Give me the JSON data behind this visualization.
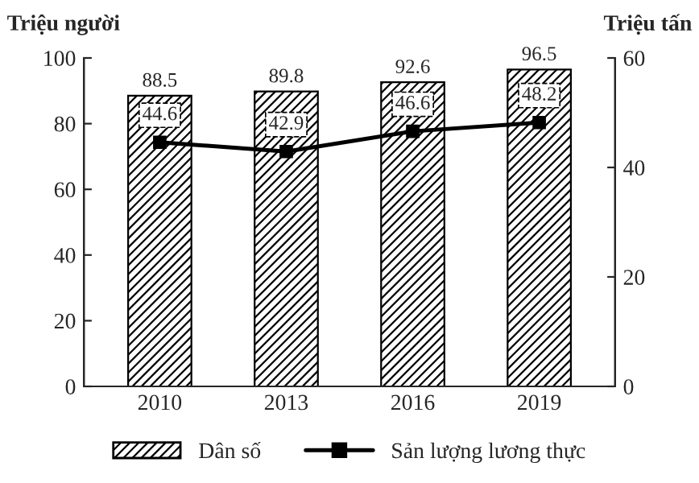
{
  "chart_data": {
    "type": "bar",
    "categories": [
      "2010",
      "2013",
      "2016",
      "2019"
    ],
    "ylabel": "Triệu người",
    "y2label": "Triệu tấn",
    "series": [
      {
        "name": "Dân số",
        "color": "#000000",
        "values": [
          88.5,
          89.8,
          92.6,
          96.5
        ]
      },
      {
        "name": "Sản lượng lương thực",
        "type": "line",
        "axis": "y2",
        "color": "#000000",
        "values": [
          44.6,
          42.9,
          46.6,
          48.2
        ]
      }
    ],
    "ylim": [
      0,
      100
    ],
    "yticks": [
      0,
      20,
      40,
      60,
      80,
      100
    ],
    "y2lim": [
      0,
      60
    ],
    "y2ticks": [
      0,
      20,
      40,
      60
    ],
    "data_labels": true,
    "marker": "square",
    "line_style": "solid",
    "legend": "bottom",
    "grid": false
  }
}
